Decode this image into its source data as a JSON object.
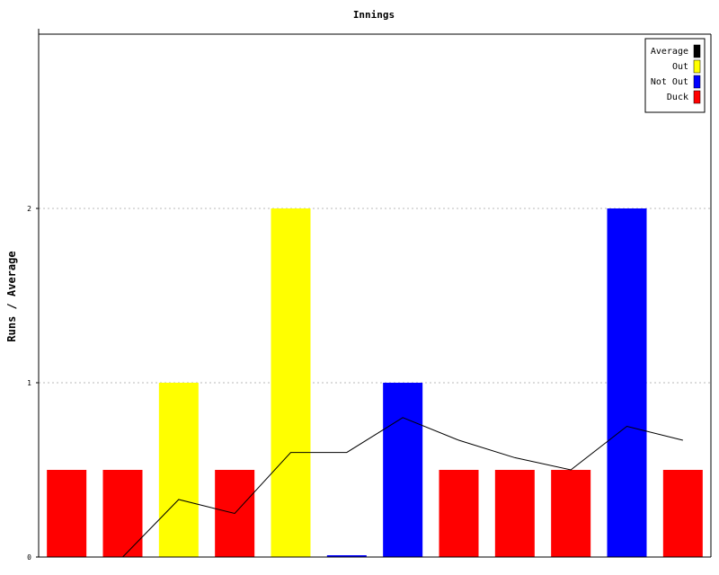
{
  "chart_data": {
    "type": "bar",
    "title": "Innings",
    "xlabel": "",
    "ylabel": "Runs / Average",
    "ylim": [
      0,
      3
    ],
    "yticks": [
      0,
      1,
      2
    ],
    "grid": true,
    "legend_position": "top-right",
    "legend": [
      {
        "label": "Average",
        "color": "#000000"
      },
      {
        "label": "Out",
        "color": "#ffff00"
      },
      {
        "label": "Not Out",
        "color": "#0000ff"
      },
      {
        "label": "Duck",
        "color": "#ff0000"
      }
    ],
    "innings": [
      {
        "runs": 0,
        "status": "Duck"
      },
      {
        "runs": 0,
        "status": "Duck"
      },
      {
        "runs": 1,
        "status": "Out"
      },
      {
        "runs": 0,
        "status": "Duck"
      },
      {
        "runs": 2,
        "status": "Out"
      },
      {
        "runs": 0,
        "status": "Not Out"
      },
      {
        "runs": 1,
        "status": "Not Out"
      },
      {
        "runs": 0,
        "status": "Duck"
      },
      {
        "runs": 0,
        "status": "Duck"
      },
      {
        "runs": 0,
        "status": "Duck"
      },
      {
        "runs": 2,
        "status": "Not Out"
      },
      {
        "runs": 0,
        "status": "Duck"
      }
    ],
    "duck_bar_value": 0.5,
    "average": [
      null,
      0,
      0.33,
      0.25,
      0.6,
      0.6,
      0.8,
      0.67,
      0.57,
      0.5,
      0.75,
      0.67
    ]
  }
}
